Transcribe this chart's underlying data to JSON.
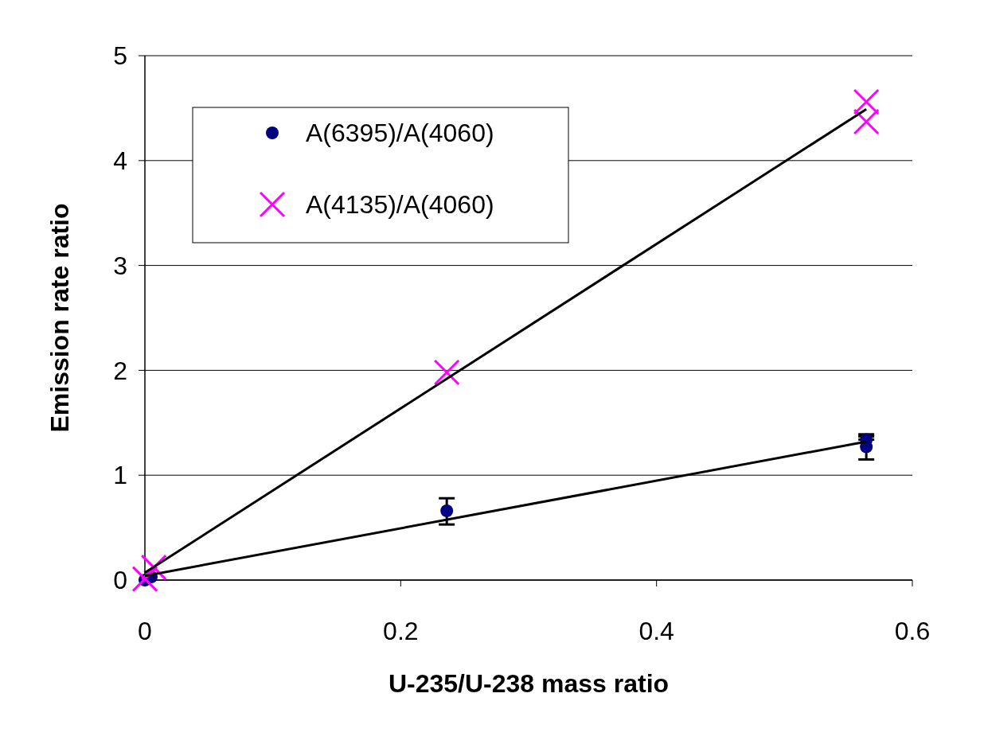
{
  "chart_data": {
    "type": "scatter",
    "xlabel": "U-235/U-238 mass ratio",
    "ylabel": "Emission rate ratio",
    "xlim": [
      0,
      0.6
    ],
    "xticks": [
      0,
      0.2,
      0.4,
      0.6
    ],
    "ylim": [
      0,
      5
    ],
    "yticks": [
      0,
      1,
      2,
      3,
      4,
      5
    ],
    "grid": "y",
    "legend": "top left",
    "series": [
      {
        "name": "A(6395)/A(4060)",
        "color": "#000080",
        "marker": "circle",
        "x": [
          0,
          0.005,
          0.236,
          0.564,
          0.564
        ],
        "values": [
          0,
          0.03,
          0.66,
          1.34,
          1.27
        ],
        "errors": [
          null,
          null,
          [
            0.53,
            0.78
          ],
          [
            1.34,
            1.39
          ],
          [
            1.15,
            1.37
          ]
        ]
      },
      {
        "name": "A(4135)/A(4060)",
        "color": "#ff00ff",
        "marker": "cross",
        "x": [
          0,
          0.007,
          0.236,
          0.564,
          0.564
        ],
        "values": [
          0.01,
          0.12,
          1.98,
          4.56,
          4.37
        ]
      },
      {
        "type": "line",
        "color": "#000000",
        "marker": "none",
        "x": [
          0,
          0.564
        ],
        "values": [
          0.04,
          1.32
        ]
      },
      {
        "type": "line",
        "color": "#000000",
        "marker": "none",
        "x": [
          0,
          0.564
        ],
        "values": [
          0.07,
          4.49
        ]
      }
    ]
  }
}
